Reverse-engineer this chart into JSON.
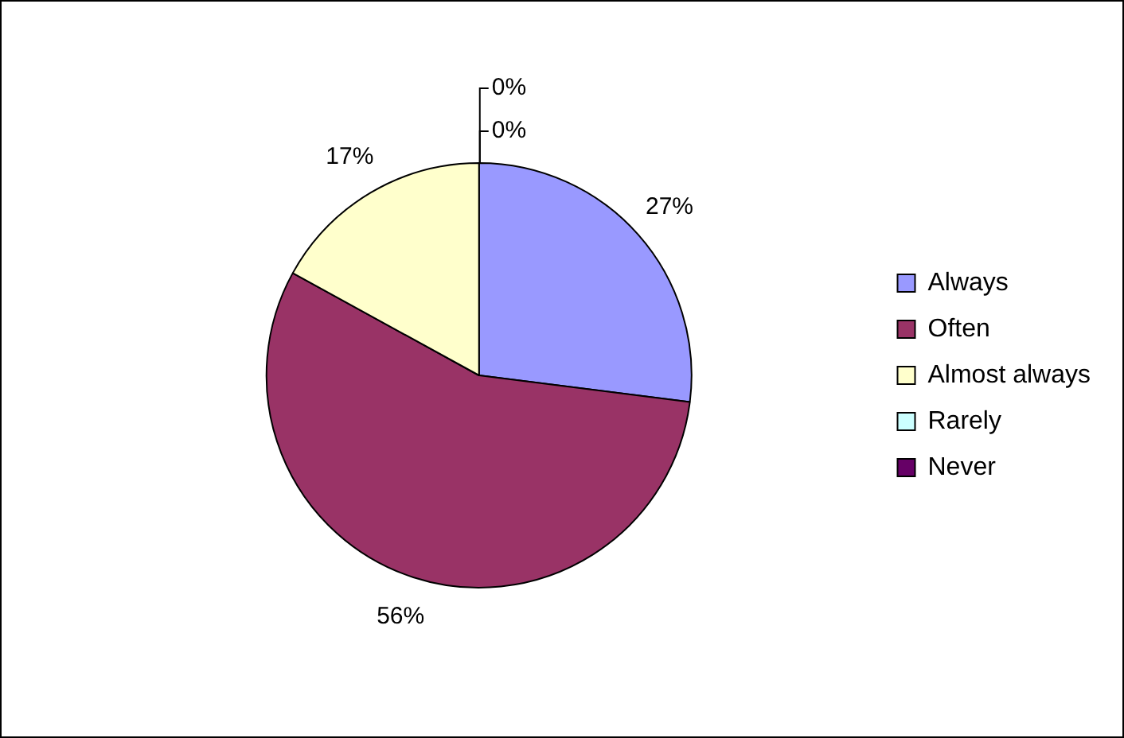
{
  "chart_data": {
    "type": "pie",
    "categories": [
      "Always",
      "Often",
      "Almost always",
      "Rarely",
      "Never"
    ],
    "values": [
      27,
      56,
      17,
      0,
      0
    ],
    "colors": [
      "#9999ff",
      "#993366",
      "#ffffcc",
      "#ccffff",
      "#660066"
    ],
    "value_labels": [
      "27%",
      "56%",
      "17%",
      "0%",
      "0%"
    ],
    "legend": "right"
  }
}
